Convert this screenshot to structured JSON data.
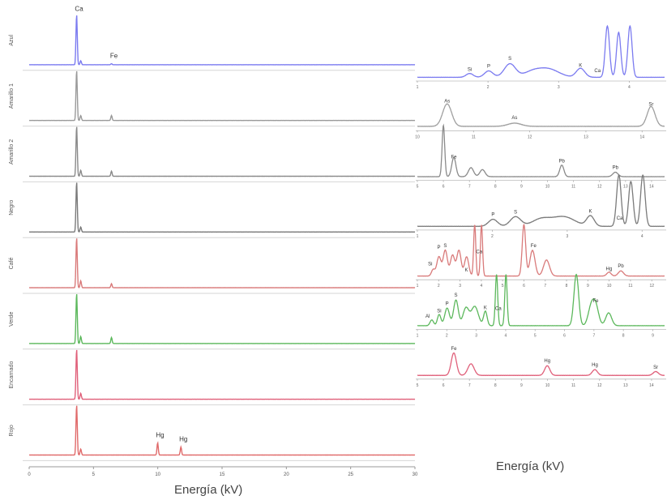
{
  "chart_data": {
    "type": "line",
    "left_panel": {
      "xlabel": "Energía (kV)",
      "x_ticks": [
        "0",
        "5",
        "10",
        "15",
        "20",
        "25",
        "30"
      ],
      "xlim": [
        0,
        30
      ],
      "series": [
        {
          "name": "Azul",
          "color": "#7b7bf0",
          "peaks": [
            {
              "x": 3.69,
              "h": 1.0
            },
            {
              "x": 4.01,
              "h": 0.08
            },
            {
              "x": 6.4,
              "h": 0.02
            }
          ],
          "labels": [
            {
              "text": "Ca",
              "x": 3.69,
              "h": 1.05
            },
            {
              "text": "Fe",
              "x": 6.4,
              "h": 0.12
            }
          ]
        },
        {
          "name": "Amarillo 1",
          "color": "#9a9a9a",
          "peaks": [
            {
              "x": 3.69,
              "h": 1.0
            },
            {
              "x": 4.01,
              "h": 0.1
            },
            {
              "x": 6.4,
              "h": 0.1
            }
          ],
          "labels": []
        },
        {
          "name": "Amarillo 2",
          "color": "#8a8a8a",
          "peaks": [
            {
              "x": 3.69,
              "h": 1.0
            },
            {
              "x": 4.01,
              "h": 0.12
            },
            {
              "x": 6.4,
              "h": 0.1
            }
          ],
          "labels": []
        },
        {
          "name": "Negro",
          "color": "#7a7a7a",
          "peaks": [
            {
              "x": 3.69,
              "h": 1.0
            },
            {
              "x": 4.01,
              "h": 0.1
            }
          ],
          "labels": []
        },
        {
          "name": "Café",
          "color": "#d97a7a",
          "peaks": [
            {
              "x": 3.69,
              "h": 1.0
            },
            {
              "x": 4.01,
              "h": 0.14
            },
            {
              "x": 6.4,
              "h": 0.08
            }
          ],
          "labels": []
        },
        {
          "name": "Verde",
          "color": "#5cb85c",
          "peaks": [
            {
              "x": 3.69,
              "h": 1.0
            },
            {
              "x": 4.01,
              "h": 0.14
            },
            {
              "x": 6.4,
              "h": 0.12
            }
          ],
          "labels": []
        },
        {
          "name": "Encarnado",
          "color": "#e0607a",
          "peaks": [
            {
              "x": 3.69,
              "h": 1.0
            },
            {
              "x": 4.01,
              "h": 0.12
            }
          ],
          "labels": []
        },
        {
          "name": "Rojo",
          "color": "#e06a6a",
          "peaks": [
            {
              "x": 3.69,
              "h": 1.0
            },
            {
              "x": 4.01,
              "h": 0.12
            },
            {
              "x": 9.99,
              "h": 0.24
            },
            {
              "x": 11.8,
              "h": 0.16
            }
          ],
          "labels": [
            {
              "text": "Hg",
              "x": 9.99,
              "h": 0.34
            },
            {
              "text": "Hg",
              "x": 11.8,
              "h": 0.26
            }
          ]
        }
      ]
    },
    "right_panel": {
      "xlabel": "Energía (kV)",
      "insets": [
        {
          "color": "#7b7bf0",
          "xlim": [
            1,
            4.5
          ],
          "ticks": [
            "1",
            "2",
            "3",
            "4"
          ],
          "baseline": 0.04,
          "peaks": [
            {
              "x": 1.74,
              "h": 0.12,
              "w": 0.05
            },
            {
              "x": 2.01,
              "h": 0.2,
              "w": 0.06
            },
            {
              "x": 2.31,
              "h": 0.42,
              "w": 0.08
            },
            {
              "x": 2.62,
              "h": 0.15,
              "w": 0.12
            },
            {
              "x": 2.85,
              "h": 0.26,
              "w": 0.15
            },
            {
              "x": 3.31,
              "h": 0.28,
              "w": 0.06
            },
            {
              "x": 3.69,
              "h": 1.6,
              "w": 0.03
            },
            {
              "x": 3.85,
              "h": 1.4,
              "w": 0.03
            },
            {
              "x": 4.01,
              "h": 1.6,
              "w": 0.03
            }
          ],
          "labels": [
            {
              "text": "Si",
              "x": 1.74,
              "h": 0.22
            },
            {
              "text": "P",
              "x": 2.01,
              "h": 0.32
            },
            {
              "text": "S",
              "x": 2.31,
              "h": 0.56
            },
            {
              "text": "K",
              "x": 3.31,
              "h": 0.34
            },
            {
              "text": "Ca",
              "x": 3.55,
              "h": 0.18
            }
          ]
        },
        {
          "color": "#a0a0a0",
          "xlim": [
            10,
            14.4
          ],
          "ticks": [
            "10",
            "11",
            "12",
            "13",
            "14"
          ],
          "baseline": 0.06,
          "peaks": [
            {
              "x": 10.53,
              "h": 0.7,
              "w": 0.08
            },
            {
              "x": 11.73,
              "h": 0.1,
              "w": 0.12
            },
            {
              "x": 14.16,
              "h": 0.62,
              "w": 0.07
            }
          ],
          "labels": [
            {
              "text": "As",
              "x": 10.53,
              "h": 0.78
            },
            {
              "text": "As",
              "x": 11.73,
              "h": 0.26
            },
            {
              "text": "Sr",
              "x": 14.16,
              "h": 0.68
            }
          ]
        },
        {
          "color": "#8a8a8a",
          "xlim": [
            5,
            14.5
          ],
          "ticks": [
            "5",
            "6",
            "7",
            "8",
            "9",
            "10",
            "11",
            "12",
            "13",
            "14"
          ],
          "baseline": 0.04,
          "peaks": [
            {
              "x": 6.0,
              "h": 1.6,
              "w": 0.05
            },
            {
              "x": 6.4,
              "h": 0.6,
              "w": 0.08
            },
            {
              "x": 7.06,
              "h": 0.28,
              "w": 0.1
            },
            {
              "x": 7.5,
              "h": 0.22,
              "w": 0.1
            },
            {
              "x": 10.55,
              "h": 0.36,
              "w": 0.08
            },
            {
              "x": 12.61,
              "h": 0.14,
              "w": 0.1
            }
          ],
          "labels": [
            {
              "text": "Fe",
              "x": 6.4,
              "h": 0.58
            },
            {
              "text": "Pb",
              "x": 10.55,
              "h": 0.46
            },
            {
              "text": "Pb",
              "x": 12.61,
              "h": 0.26
            }
          ]
        },
        {
          "color": "#7a7a7a",
          "xlim": [
            1,
            4.3
          ],
          "ticks": [
            "1",
            "2",
            "3",
            "4"
          ],
          "baseline": 0.04,
          "peaks": [
            {
              "x": 2.01,
              "h": 0.22,
              "w": 0.06
            },
            {
              "x": 2.31,
              "h": 0.3,
              "w": 0.07
            },
            {
              "x": 2.65,
              "h": 0.22,
              "w": 0.12
            },
            {
              "x": 2.95,
              "h": 0.3,
              "w": 0.15
            },
            {
              "x": 3.31,
              "h": 0.32,
              "w": 0.05
            },
            {
              "x": 3.69,
              "h": 1.6,
              "w": 0.03
            },
            {
              "x": 3.85,
              "h": 1.4,
              "w": 0.03
            },
            {
              "x": 4.01,
              "h": 1.6,
              "w": 0.03
            }
          ],
          "labels": [
            {
              "text": "P",
              "x": 2.01,
              "h": 0.34
            },
            {
              "text": "S",
              "x": 2.31,
              "h": 0.42
            },
            {
              "text": "K",
              "x": 3.31,
              "h": 0.44
            },
            {
              "text": "Ca",
              "x": 3.7,
              "h": 0.22
            }
          ]
        },
        {
          "color": "#d97a7a",
          "xlim": [
            1,
            12.6
          ],
          "ticks": [
            "1",
            "2",
            "3",
            "4",
            "5",
            "6",
            "7",
            "8",
            "9",
            "10",
            "11",
            "12"
          ],
          "baseline": 0.04,
          "peaks": [
            {
              "x": 1.74,
              "h": 0.2,
              "w": 0.08
            },
            {
              "x": 2.01,
              "h": 0.6,
              "w": 0.1
            },
            {
              "x": 2.31,
              "h": 0.8,
              "w": 0.1
            },
            {
              "x": 2.65,
              "h": 0.65,
              "w": 0.1
            },
            {
              "x": 2.95,
              "h": 0.8,
              "w": 0.1
            },
            {
              "x": 3.31,
              "h": 0.6,
              "w": 0.1
            },
            {
              "x": 3.69,
              "h": 1.6,
              "w": 0.05
            },
            {
              "x": 4.01,
              "h": 1.6,
              "w": 0.05
            },
            {
              "x": 6.0,
              "h": 1.6,
              "w": 0.08
            },
            {
              "x": 6.4,
              "h": 0.8,
              "w": 0.12
            },
            {
              "x": 7.06,
              "h": 0.5,
              "w": 0.14
            },
            {
              "x": 9.99,
              "h": 0.12,
              "w": 0.1
            },
            {
              "x": 10.55,
              "h": 0.16,
              "w": 0.12
            }
          ],
          "labels": [
            {
              "text": "Si",
              "x": 1.6,
              "h": 0.34
            },
            {
              "text": "P",
              "x": 2.01,
              "h": 0.86
            },
            {
              "text": "S",
              "x": 2.31,
              "h": 0.92
            },
            {
              "text": "Ca",
              "x": 3.9,
              "h": 0.72
            },
            {
              "text": "K",
              "x": 3.3,
              "h": 0.16
            },
            {
              "text": "Fe",
              "x": 6.45,
              "h": 0.92
            },
            {
              "text": "Hg",
              "x": 9.99,
              "h": 0.2
            },
            {
              "text": "Pb",
              "x": 10.55,
              "h": 0.28
            }
          ]
        },
        {
          "color": "#5cb85c",
          "xlim": [
            1,
            9.4
          ],
          "ticks": [
            "1",
            "2",
            "3",
            "4",
            "5",
            "6",
            "7",
            "8",
            "9"
          ],
          "baseline": 0.04,
          "peaks": [
            {
              "x": 1.49,
              "h": 0.18,
              "w": 0.06
            },
            {
              "x": 1.74,
              "h": 0.35,
              "w": 0.06
            },
            {
              "x": 2.01,
              "h": 0.55,
              "w": 0.08
            },
            {
              "x": 2.31,
              "h": 0.8,
              "w": 0.08
            },
            {
              "x": 2.65,
              "h": 0.55,
              "w": 0.1
            },
            {
              "x": 2.95,
              "h": 0.6,
              "w": 0.12
            },
            {
              "x": 3.31,
              "h": 0.45,
              "w": 0.06
            },
            {
              "x": 3.69,
              "h": 1.6,
              "w": 0.04
            },
            {
              "x": 4.01,
              "h": 1.6,
              "w": 0.04
            },
            {
              "x": 6.4,
              "h": 1.6,
              "w": 0.08
            },
            {
              "x": 6.9,
              "h": 0.55,
              "w": 0.1
            },
            {
              "x": 7.06,
              "h": 0.6,
              "w": 0.1
            },
            {
              "x": 7.5,
              "h": 0.4,
              "w": 0.1
            }
          ],
          "labels": [
            {
              "text": "Al",
              "x": 1.35,
              "h": 0.26
            },
            {
              "text": "Si",
              "x": 1.74,
              "h": 0.43
            },
            {
              "text": "P",
              "x": 2.01,
              "h": 0.66
            },
            {
              "text": "S",
              "x": 2.31,
              "h": 0.92
            },
            {
              "text": "K",
              "x": 3.31,
              "h": 0.53
            },
            {
              "text": "Ca",
              "x": 3.75,
              "h": 0.5
            },
            {
              "text": "Fe",
              "x": 7.06,
              "h": 0.74
            }
          ]
        },
        {
          "color": "#e0607a",
          "xlim": [
            5,
            14.5
          ],
          "ticks": [
            "5",
            "6",
            "7",
            "8",
            "9",
            "10",
            "11",
            "12",
            "13",
            "14"
          ],
          "baseline": 0.04,
          "peaks": [
            {
              "x": 6.4,
              "h": 0.7,
              "w": 0.1
            },
            {
              "x": 7.06,
              "h": 0.36,
              "w": 0.12
            },
            {
              "x": 9.99,
              "h": 0.3,
              "w": 0.1
            },
            {
              "x": 11.82,
              "h": 0.18,
              "w": 0.1
            },
            {
              "x": 14.16,
              "h": 0.12,
              "w": 0.1
            }
          ],
          "labels": [
            {
              "text": "Fe",
              "x": 6.4,
              "h": 0.8
            },
            {
              "text": "Hg",
              "x": 9.99,
              "h": 0.42
            },
            {
              "text": "Hg",
              "x": 11.82,
              "h": 0.3
            },
            {
              "text": "Sr",
              "x": 14.16,
              "h": 0.22
            }
          ]
        }
      ]
    }
  }
}
